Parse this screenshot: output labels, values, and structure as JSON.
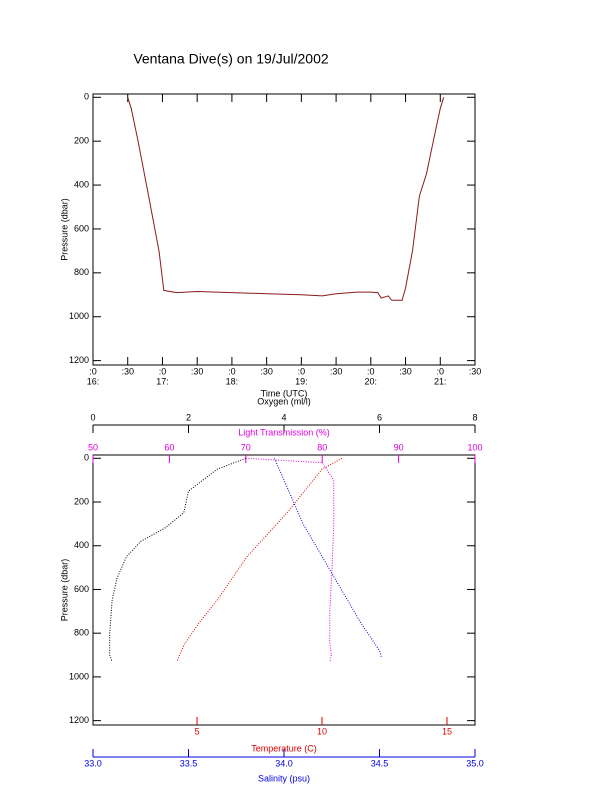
{
  "chart_data": [
    {
      "type": "line",
      "title": "Ventana Dive(s) on 19/Jul/2002",
      "xlabel": "Time (UTC)",
      "ylabel": "Pressure (dbar)",
      "xlim": [
        16,
        21.5
      ],
      "ylim": [
        1220,
        -15
      ],
      "xticks": [
        {
          "value": 16,
          "label": ":0"
        },
        {
          "value": 16.5,
          "label": ":30"
        },
        {
          "value": 17,
          "label": ":0"
        },
        {
          "value": 17.5,
          "label": ":30"
        },
        {
          "value": 18,
          "label": ":0"
        },
        {
          "value": 18.5,
          "label": ":30"
        },
        {
          "value": 19,
          "label": ":0"
        },
        {
          "value": 19.5,
          "label": ":30"
        },
        {
          "value": 20,
          "label": ":0"
        },
        {
          "value": 20.5,
          "label": ":30"
        },
        {
          "value": 21,
          "label": ":0"
        },
        {
          "value": 21.5,
          "label": ":30"
        }
      ],
      "xtick_sublabels": [
        {
          "value": 16,
          "label": "16:"
        },
        {
          "value": 17,
          "label": "17:"
        },
        {
          "value": 18,
          "label": "18:"
        },
        {
          "value": 19,
          "label": "19:"
        },
        {
          "value": 20,
          "label": "20:"
        },
        {
          "value": 21,
          "label": "21:"
        }
      ],
      "yticks": [
        0,
        200,
        400,
        600,
        800,
        1000,
        1200
      ],
      "series": [
        {
          "color": "#8b1a1a",
          "x": [
            16.5,
            16.55,
            16.65,
            16.8,
            16.95,
            17.02,
            17.2,
            17.5,
            18,
            18.5,
            19,
            19.3,
            19.5,
            19.8,
            20,
            20.1,
            20.15,
            20.25,
            20.3,
            20.45,
            20.5,
            20.6,
            20.7,
            20.8,
            20.9,
            21,
            21.05
          ],
          "values": [
            0,
            50,
            200,
            450,
            700,
            880,
            890,
            885,
            890,
            895,
            900,
            905,
            895,
            888,
            888,
            890,
            915,
            905,
            925,
            925,
            870,
            700,
            450,
            350,
            200,
            50,
            0
          ]
        }
      ]
    },
    {
      "type": "multi-axis-line",
      "ylabel": "Pressure (dbar)",
      "ylim": [
        1220,
        -15
      ],
      "yticks": [
        0,
        200,
        400,
        600,
        800,
        1000,
        1200
      ],
      "xaxes": [
        {
          "label": "Oxygen (ml/l)",
          "color": "#000000",
          "position": "top-outer",
          "xlim": [
            0,
            8
          ],
          "xticks": [
            0,
            2,
            4,
            6,
            8
          ]
        },
        {
          "label": "Light Transmission (%)",
          "color": "#e000e0",
          "position": "top",
          "xlim": [
            50,
            100
          ],
          "xticks": [
            50,
            60,
            70,
            80,
            90,
            100
          ]
        },
        {
          "label": "Temperature (C)",
          "color": "#e00000",
          "position": "bottom",
          "xlim": [
            0.84,
            16.12
          ],
          "xticks": [
            5,
            10,
            15
          ]
        },
        {
          "label": "Salinity (psu)",
          "color": "#0000e0",
          "position": "bottom-outer",
          "xlim": [
            33,
            35
          ],
          "xticks": [
            {
              "value": 33,
              "label": "33.0"
            },
            {
              "value": 33.5,
              "label": "33.5"
            },
            {
              "value": 34,
              "label": "34.0"
            },
            {
              "value": 34.5,
              "label": "34.5"
            },
            {
              "value": 35,
              "label": "35.0"
            }
          ]
        }
      ],
      "series": [
        {
          "xaxis": 0,
          "color": "#000000",
          "x": [
            3.2,
            2.6,
            2.0,
            1.9,
            1.5,
            1.0,
            0.7,
            0.5,
            0.4,
            0.35,
            0.35,
            0.4
          ],
          "values": [
            0,
            50,
            150,
            250,
            320,
            380,
            450,
            550,
            650,
            800,
            900,
            930
          ]
        },
        {
          "xaxis": 1,
          "color": "#e000e0",
          "x": [
            70,
            80,
            81.5,
            81.5,
            81.3,
            81,
            81,
            81.2,
            81
          ],
          "values": [
            0,
            20,
            100,
            300,
            500,
            700,
            850,
            900,
            930
          ]
        },
        {
          "xaxis": 2,
          "color": "#e00000",
          "x": [
            10.8,
            10,
            9.3,
            8.6,
            7.8,
            7,
            6.4,
            5.8,
            5.1,
            4.5,
            4.3,
            4.2
          ],
          "values": [
            0,
            50,
            150,
            250,
            350,
            450,
            550,
            650,
            750,
            850,
            900,
            930
          ]
        },
        {
          "xaxis": 3,
          "color": "#0000e0",
          "x": [
            33.95,
            34,
            34.1,
            34.2,
            34.3,
            34.4,
            34.5,
            34.51
          ],
          "values": [
            0,
            100,
            300,
            450,
            600,
            750,
            880,
            910
          ]
        }
      ]
    }
  ]
}
